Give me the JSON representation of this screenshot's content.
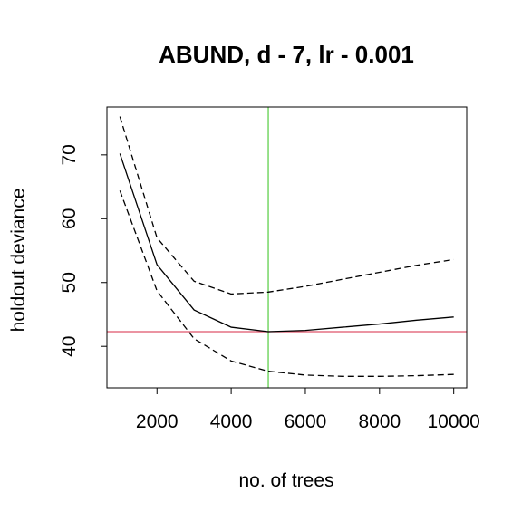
{
  "chart_data": {
    "type": "line",
    "title": "ABUND, d - 7, lr - 0.001",
    "xlabel": "no. of trees",
    "ylabel": "holdout deviance",
    "xlim": [
      650,
      10350
    ],
    "ylim": [
      33.5,
      77.5
    ],
    "xticks": [
      2000,
      4000,
      6000,
      8000,
      10000
    ],
    "yticks": [
      40,
      50,
      60,
      70
    ],
    "grid": false,
    "series": [
      {
        "style": "solid",
        "color": "#000000",
        "x": [
          1000,
          2000,
          3000,
          4000,
          5000,
          6000,
          7000,
          8000,
          9000,
          10000
        ],
        "y": [
          70.2,
          52.8,
          45.7,
          43.0,
          42.3,
          42.5,
          43.0,
          43.5,
          44.1,
          44.6
        ]
      },
      {
        "style": "dashed",
        "color": "#000000",
        "x": [
          1000,
          2000,
          3000,
          4000,
          5000,
          6000,
          7000,
          8000,
          9000,
          10000
        ],
        "y": [
          76.0,
          57.0,
          50.2,
          48.2,
          48.5,
          49.4,
          50.5,
          51.6,
          52.7,
          53.6
        ]
      },
      {
        "style": "dashed",
        "color": "#000000",
        "x": [
          1000,
          2000,
          3000,
          4000,
          5000,
          6000,
          7000,
          8000,
          9000,
          10000
        ],
        "y": [
          64.4,
          48.7,
          41.2,
          37.7,
          36.1,
          35.5,
          35.3,
          35.3,
          35.4,
          35.6
        ]
      }
    ],
    "reference_lines": {
      "vertical_x": 5000,
      "vertical_color": "#61d04f",
      "horizontal_y": 42.3,
      "horizontal_color": "#df536b"
    }
  }
}
